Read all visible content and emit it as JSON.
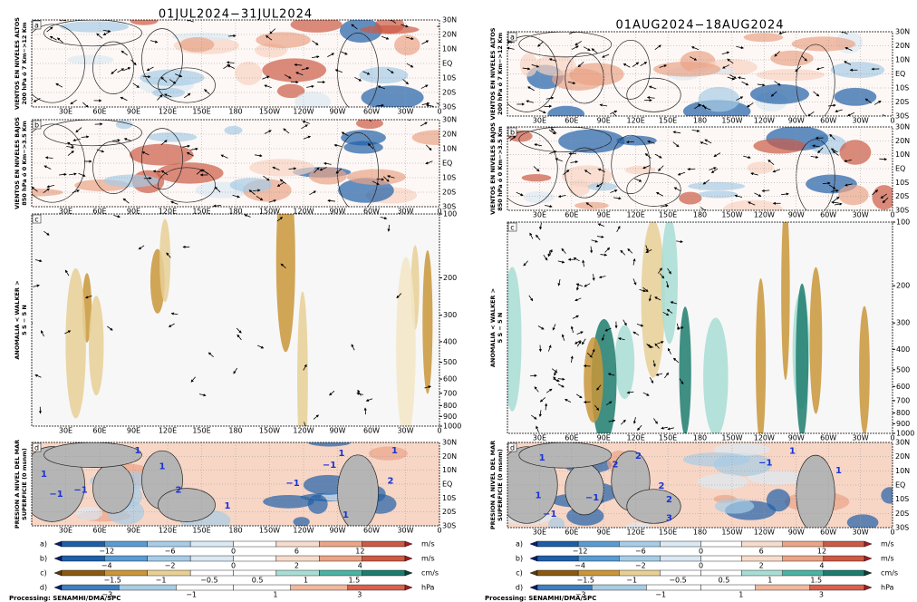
{
  "columns": [
    {
      "title": "01JUL2024−31JUL2024",
      "contour_labels": [
        "1",
        "−1",
        "−1",
        "1",
        "−1",
        "−1",
        "1",
        "2",
        "1",
        "1",
        "1",
        "1",
        "2"
      ]
    },
    {
      "title": "01AUG2024−18AUG2024",
      "contour_labels": [
        "2",
        "2",
        "−1",
        "2",
        "2",
        "1",
        "1",
        "−1",
        "−1",
        "1",
        "1",
        "3"
      ]
    }
  ],
  "panel_letters": [
    "a",
    "b",
    "c",
    "d"
  ],
  "side_labels": [
    [
      "VIENTOS EN NIVELES ALTOS",
      "200 hPa ó 7 Km−>12 Km"
    ],
    [
      "VIENTOS EN NIVELES BAJOS",
      "850 hPa ó 0 Km−>3.5 Km"
    ],
    [
      "ANOMALIA < WALKER >",
      "5 S − 5 N"
    ],
    [
      "PRESION A NIVEL DEL MAR",
      "SUPERFICIE (0 msnm)"
    ]
  ],
  "lat_ticks": [
    "30N",
    "20N",
    "10N",
    "EQ",
    "10S",
    "20S",
    "30S"
  ],
  "lon_ticks": [
    "30E",
    "60E",
    "90E",
    "120E",
    "150E",
    "180",
    "150W",
    "120W",
    "90W",
    "60W",
    "30W",
    "0"
  ],
  "pressure_ticks": [
    100,
    200,
    300,
    400,
    500,
    600,
    700,
    800,
    900,
    1000
  ],
  "colorbars": [
    {
      "letter": "a)",
      "ticks": [
        "−12",
        "−6",
        "0",
        "6",
        "12"
      ],
      "unit": "m/s",
      "colors": [
        "#0a1f6e",
        "#1f5fa8",
        "#5a9bd1",
        "#a7cce6",
        "#dbe9f4",
        "#ffffff",
        "#f8dccb",
        "#eaa487",
        "#cc5a45",
        "#a51c22"
      ]
    },
    {
      "letter": "b)",
      "ticks": [
        "−4",
        "−2",
        "0",
        "2",
        "4"
      ],
      "unit": "m/s",
      "colors": [
        "#0a1f6e",
        "#1f5fa8",
        "#5a9bd1",
        "#a7cce6",
        "#dbe9f4",
        "#ffffff",
        "#f8dccb",
        "#eaa487",
        "#cc5a45",
        "#a51c22"
      ]
    },
    {
      "letter": "c)",
      "ticks": [
        "−1.5",
        "−1",
        "−0.5",
        "0.5",
        "1",
        "1.5"
      ],
      "unit": "cm/s",
      "colors": [
        "#5a3a0a",
        "#8a5a14",
        "#c9963a",
        "#e8cf95",
        "#ffffff",
        "#ffffff",
        "#a8ddd4",
        "#4bb3a3",
        "#1e7c6e",
        "#0b4036"
      ]
    },
    {
      "letter": "d)",
      "ticks": [
        "−3",
        "−1",
        "1",
        "3"
      ],
      "unit": "hPa",
      "colors": [
        "#0a1f6e",
        "#3f7fc0",
        "#a7cce6",
        "#ffffff",
        "#ffffff",
        "#f4b79c",
        "#d9614a",
        "#a51c22"
      ]
    }
  ],
  "footer": "Processing: SENAMHI/DMA/SPC"
}
